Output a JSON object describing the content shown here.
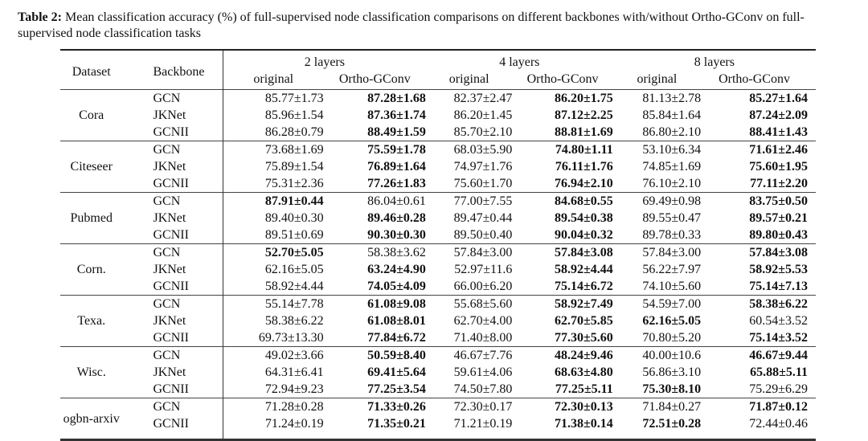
{
  "caption": {
    "label": "Table 2:",
    "text": " Mean classification accuracy (%) of full-supervised node classification comparisons on different backbones with/without Ortho-GConv on full-supervised node classification tasks"
  },
  "header": {
    "dataset": "Dataset",
    "backbone": "Backbone",
    "groups": [
      "2 layers",
      "4 layers",
      "8 layers"
    ],
    "subcols": [
      "original",
      "Ortho-GConv",
      "original",
      "Ortho-GConv",
      "original",
      "Ortho-GConv"
    ]
  },
  "groups": [
    {
      "dataset": "Cora",
      "rows": [
        {
          "backbone": "GCN",
          "cells": [
            [
              "85.77±1.73",
              0
            ],
            [
              "87.28±1.68",
              1
            ],
            [
              "82.37±2.47",
              0
            ],
            [
              "86.20±1.75",
              1
            ],
            [
              "81.13±2.78",
              0
            ],
            [
              "85.27±1.64",
              1
            ]
          ]
        },
        {
          "backbone": "JKNet",
          "cells": [
            [
              "85.96±1.54",
              0
            ],
            [
              "87.36±1.74",
              1
            ],
            [
              "86.20±1.45",
              0
            ],
            [
              "87.12±2.25",
              1
            ],
            [
              "85.84±1.64",
              0
            ],
            [
              "87.24±2.09",
              1
            ]
          ]
        },
        {
          "backbone": "GCNII",
          "cells": [
            [
              "86.28±0.79",
              0
            ],
            [
              "88.49±1.59",
              1
            ],
            [
              "85.70±2.10",
              0
            ],
            [
              "88.81±1.69",
              1
            ],
            [
              "86.80±2.10",
              0
            ],
            [
              "88.41±1.43",
              1
            ]
          ]
        }
      ]
    },
    {
      "dataset": "Citeseer",
      "rows": [
        {
          "backbone": "GCN",
          "cells": [
            [
              "73.68±1.69",
              0
            ],
            [
              "75.59±1.78",
              1
            ],
            [
              "68.03±5.90",
              0
            ],
            [
              "74.80±1.11",
              1
            ],
            [
              "53.10±6.34",
              0
            ],
            [
              "71.61±2.46",
              1
            ]
          ]
        },
        {
          "backbone": "JKNet",
          "cells": [
            [
              "75.89±1.54",
              0
            ],
            [
              "76.89±1.64",
              1
            ],
            [
              "74.97±1.76",
              0
            ],
            [
              "76.11±1.76",
              1
            ],
            [
              "74.85±1.69",
              0
            ],
            [
              "75.60±1.95",
              1
            ]
          ]
        },
        {
          "backbone": "GCNII",
          "cells": [
            [
              "75.31±2.36",
              0
            ],
            [
              "77.26±1.83",
              1
            ],
            [
              "75.60±1.70",
              0
            ],
            [
              "76.94±2.10",
              1
            ],
            [
              "76.10±2.10",
              0
            ],
            [
              "77.11±2.20",
              1
            ]
          ]
        }
      ]
    },
    {
      "dataset": "Pubmed",
      "rows": [
        {
          "backbone": "GCN",
          "cells": [
            [
              "87.91±0.44",
              1
            ],
            [
              "86.04±0.61",
              0
            ],
            [
              "77.00±7.55",
              0
            ],
            [
              "84.68±0.55",
              1
            ],
            [
              "69.49±0.98",
              0
            ],
            [
              "83.75±0.50",
              1
            ]
          ]
        },
        {
          "backbone": "JKNet",
          "cells": [
            [
              "89.40±0.30",
              0
            ],
            [
              "89.46±0.28",
              1
            ],
            [
              "89.47±0.44",
              0
            ],
            [
              "89.54±0.38",
              1
            ],
            [
              "89.55±0.47",
              0
            ],
            [
              "89.57±0.21",
              1
            ]
          ]
        },
        {
          "backbone": "GCNII",
          "cells": [
            [
              "89.51±0.69",
              0
            ],
            [
              "90.30±0.30",
              1
            ],
            [
              "89.50±0.40",
              0
            ],
            [
              "90.04±0.32",
              1
            ],
            [
              "89.78±0.33",
              0
            ],
            [
              "89.80±0.43",
              1
            ]
          ]
        }
      ]
    },
    {
      "dataset": "Corn.",
      "rows": [
        {
          "backbone": "GCN",
          "cells": [
            [
              "52.70±5.05",
              1
            ],
            [
              "58.38±3.62",
              0
            ],
            [
              "57.84±3.00",
              0
            ],
            [
              "57.84±3.08",
              1
            ],
            [
              "57.84±3.00",
              0
            ],
            [
              "57.84±3.08",
              1
            ]
          ]
        },
        {
          "backbone": "JKNet",
          "cells": [
            [
              "62.16±5.05",
              0
            ],
            [
              "63.24±4.90",
              1
            ],
            [
              "52.97±11.6",
              0
            ],
            [
              "58.92±4.44",
              1
            ],
            [
              "56.22±7.97",
              0
            ],
            [
              "58.92±5.53",
              1
            ]
          ]
        },
        {
          "backbone": "GCNII",
          "cells": [
            [
              "58.92±4.44",
              0
            ],
            [
              "74.05±4.09",
              1
            ],
            [
              "66.00±6.20",
              0
            ],
            [
              "75.14±6.72",
              1
            ],
            [
              "74.10±5.60",
              0
            ],
            [
              "75.14±7.13",
              1
            ]
          ]
        }
      ]
    },
    {
      "dataset": "Texa.",
      "rows": [
        {
          "backbone": "GCN",
          "cells": [
            [
              "55.14±7.78",
              0
            ],
            [
              "61.08±9.08",
              1
            ],
            [
              "55.68±5.60",
              0
            ],
            [
              "58.92±7.49",
              1
            ],
            [
              "54.59±7.00",
              0
            ],
            [
              "58.38±6.22",
              1
            ]
          ]
        },
        {
          "backbone": "JKNet",
          "cells": [
            [
              "58.38±6.22",
              0
            ],
            [
              "61.08±8.01",
              1
            ],
            [
              "62.70±4.00",
              0
            ],
            [
              "62.70±5.85",
              1
            ],
            [
              "62.16±5.05",
              1
            ],
            [
              "60.54±3.52",
              0
            ]
          ]
        },
        {
          "backbone": "GCNII",
          "cells": [
            [
              "69.73±13.30",
              0
            ],
            [
              "77.84±6.72",
              1
            ],
            [
              "71.40±8.00",
              0
            ],
            [
              "77.30±5.60",
              1
            ],
            [
              "70.80±5.20",
              0
            ],
            [
              "75.14±3.52",
              1
            ]
          ]
        }
      ]
    },
    {
      "dataset": "Wisc.",
      "rows": [
        {
          "backbone": "GCN",
          "cells": [
            [
              "49.02±3.66",
              0
            ],
            [
              "50.59±8.40",
              1
            ],
            [
              "46.67±7.76",
              0
            ],
            [
              "48.24±9.46",
              1
            ],
            [
              "40.00±10.6",
              0
            ],
            [
              "46.67±9.44",
              1
            ]
          ]
        },
        {
          "backbone": "JKNet",
          "cells": [
            [
              "64.31±6.41",
              0
            ],
            [
              "69.41±5.64",
              1
            ],
            [
              "59.61±4.06",
              0
            ],
            [
              "68.63±4.80",
              1
            ],
            [
              "56.86±3.10",
              0
            ],
            [
              "65.88±5.11",
              1
            ]
          ]
        },
        {
          "backbone": "GCNII",
          "cells": [
            [
              "72.94±9.23",
              0
            ],
            [
              "77.25±3.54",
              1
            ],
            [
              "74.50±7.80",
              0
            ],
            [
              "77.25±5.11",
              1
            ],
            [
              "75.30±8.10",
              1
            ],
            [
              "75.29±6.29",
              0
            ]
          ]
        }
      ]
    },
    {
      "dataset": "ogbn-arxiv",
      "rows": [
        {
          "backbone": "GCN",
          "cells": [
            [
              "71.28±0.28",
              0
            ],
            [
              "71.33±0.26",
              1
            ],
            [
              "72.30±0.17",
              0
            ],
            [
              "72.30±0.13",
              1
            ],
            [
              "71.84±0.27",
              0
            ],
            [
              "71.87±0.12",
              1
            ]
          ]
        },
        {
          "backbone": "GCNII",
          "cells": [
            [
              "71.24±0.19",
              0
            ],
            [
              "71.35±0.21",
              1
            ],
            [
              "71.21±0.19",
              0
            ],
            [
              "71.38±0.14",
              1
            ],
            [
              "72.51±0.28",
              1
            ],
            [
              "72.44±0.46",
              0
            ]
          ]
        }
      ]
    }
  ]
}
